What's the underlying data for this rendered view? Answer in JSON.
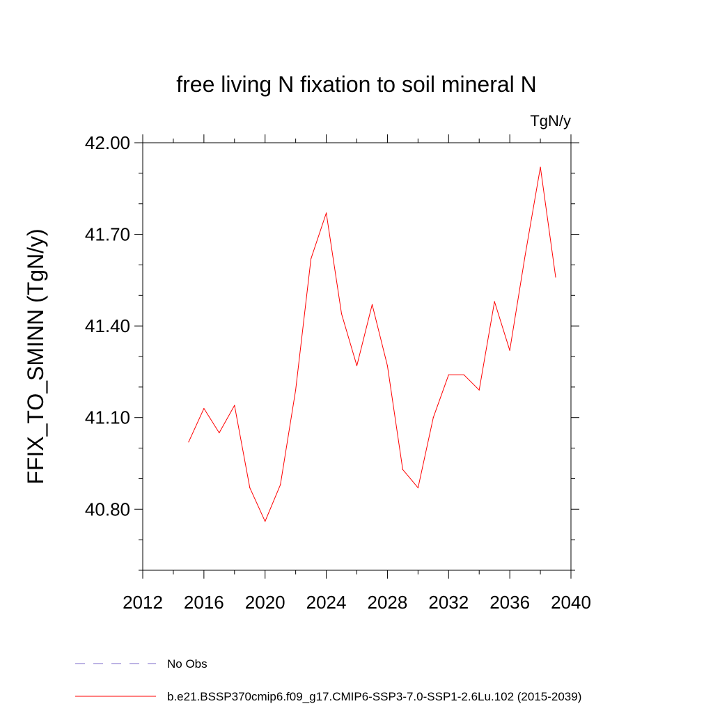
{
  "chart_data": {
    "type": "line",
    "title": "free living N fixation to soil mineral N",
    "units_label": "TgN/y",
    "ylabel": "FFIX_TO_SMINN  (TgN/y)",
    "xlabel": "",
    "xlim": [
      2012,
      2040
    ],
    "ylim": [
      40.6,
      42.0
    ],
    "xticks": [
      2012,
      2016,
      2020,
      2024,
      2028,
      2032,
      2036,
      2040
    ],
    "xtick_labels": [
      "2012",
      "2016",
      "2020",
      "2024",
      "2028",
      "2032",
      "2036",
      "2040"
    ],
    "yticks": [
      40.8,
      41.1,
      41.4,
      41.7,
      42.0
    ],
    "ytick_labels": [
      "40.80",
      "41.10",
      "41.40",
      "41.70",
      "42.00"
    ],
    "grid": false,
    "legend_position": "bottom",
    "series": [
      {
        "name": "b.e21.BSSP370cmip6.f09_g17.CMIP6-SSP3-7.0-SSP1-2.6Lu.102 (2015-2039)",
        "color": "#ff0000",
        "x": [
          2015,
          2016,
          2017,
          2018,
          2019,
          2020,
          2021,
          2022,
          2023,
          2024,
          2025,
          2026,
          2027,
          2028,
          2029,
          2030,
          2031,
          2032,
          2033,
          2034,
          2035,
          2036,
          2037,
          2038,
          2039
        ],
        "values": [
          41.02,
          41.13,
          41.05,
          41.14,
          40.87,
          40.76,
          40.88,
          41.19,
          41.62,
          41.77,
          41.44,
          41.27,
          41.47,
          41.27,
          40.93,
          40.87,
          41.1,
          41.24,
          41.24,
          41.19,
          41.48,
          41.32,
          41.63,
          41.92,
          41.56
        ]
      }
    ],
    "legend": [
      {
        "label": "No Obs",
        "color": "#7b68c8",
        "style": "dashed"
      },
      {
        "label": "b.e21.BSSP370cmip6.f09_g17.CMIP6-SSP3-7.0-SSP1-2.6Lu.102 (2015-2039)",
        "color": "#ff0000",
        "style": "solid"
      }
    ]
  }
}
